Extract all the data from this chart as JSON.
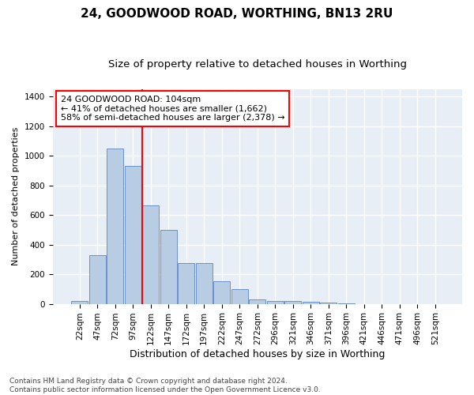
{
  "title": "24, GOODWOOD ROAD, WORTHING, BN13 2RU",
  "subtitle": "Size of property relative to detached houses in Worthing",
  "xlabel": "Distribution of detached houses by size in Worthing",
  "ylabel": "Number of detached properties",
  "categories": [
    "22sqm",
    "47sqm",
    "72sqm",
    "97sqm",
    "122sqm",
    "147sqm",
    "172sqm",
    "197sqm",
    "222sqm",
    "247sqm",
    "272sqm",
    "296sqm",
    "321sqm",
    "346sqm",
    "371sqm",
    "396sqm",
    "421sqm",
    "446sqm",
    "471sqm",
    "496sqm",
    "521sqm"
  ],
  "values": [
    20,
    330,
    1050,
    930,
    665,
    500,
    275,
    275,
    150,
    100,
    30,
    20,
    20,
    15,
    10,
    5,
    0,
    0,
    0,
    0,
    0
  ],
  "bar_color": "#b8cce4",
  "bar_edgecolor": "#4472c4",
  "bar_alpha": 1.0,
  "vline_x": 3.5,
  "vline_color": "#ff0000",
  "annotation_line1": "24 GOODWOOD ROAD: 104sqm",
  "annotation_line2": "← 41% of detached houses are smaller (1,662)",
  "annotation_line3": "58% of semi-detached houses are larger (2,378) →",
  "ylim": [
    0,
    1450
  ],
  "yticks": [
    0,
    200,
    400,
    600,
    800,
    1000,
    1200,
    1400
  ],
  "background_color": "#e8eef5",
  "grid_color": "#ffffff",
  "footer_text": "Contains HM Land Registry data © Crown copyright and database right 2024.\nContains public sector information licensed under the Open Government Licence v3.0.",
  "title_fontsize": 11,
  "subtitle_fontsize": 9.5,
  "xlabel_fontsize": 9,
  "ylabel_fontsize": 8,
  "tick_fontsize": 7.5,
  "annotation_fontsize": 8,
  "footer_fontsize": 6.5
}
